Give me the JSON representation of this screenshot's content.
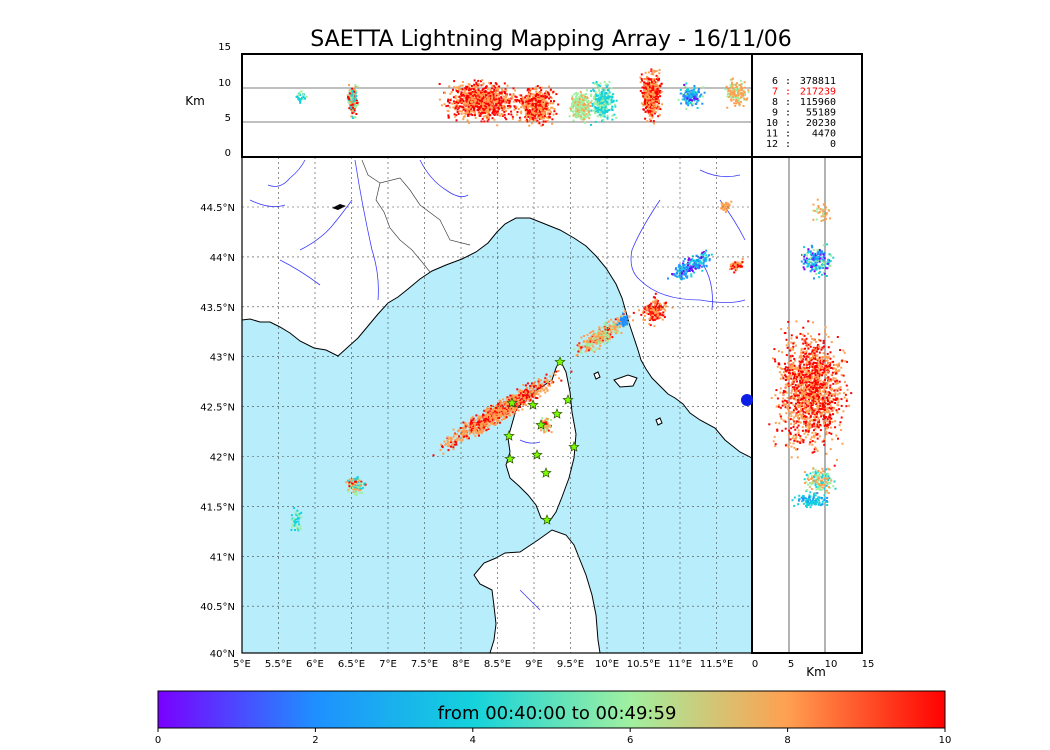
{
  "title": "SAETTA Lightning Mapping Array - 16/11/06",
  "top_panel": {
    "ylabel": "Km",
    "y_ticks": [
      "15",
      "10",
      "5",
      "0"
    ]
  },
  "side_panel": {
    "xlabel": "Km",
    "x_ticks": [
      "0",
      "5",
      "10",
      "15"
    ]
  },
  "map": {
    "lon_ticks": [
      "5°E",
      "5.5°E",
      "6°E",
      "6.5°E",
      "7°E",
      "7.5°E",
      "8°E",
      "8.5°E",
      "9°E",
      "9.5°E",
      "10°E",
      "10.5°E",
      "11°E",
      "11.5°E"
    ],
    "lat_ticks": [
      "44.5°N",
      "44°N",
      "43.5°N",
      "43°N",
      "42.5°N",
      "42°N",
      "41.5°N",
      "41°N",
      "40.5°N",
      "40°N"
    ],
    "sea_color": "#b8eefc",
    "land_color": "#ffffff",
    "station_color": "#7cfc00",
    "station_count": 12
  },
  "altitude_counts": [
    {
      "level": "6",
      "count": "378811",
      "color": "#000000"
    },
    {
      "level": "7",
      "count": "217239",
      "color": "#ff0000"
    },
    {
      "level": "8",
      "count": "115960",
      "color": "#000000"
    },
    {
      "level": "9",
      "count": "55189",
      "color": "#000000"
    },
    {
      "level": "10",
      "count": "20230",
      "color": "#000000"
    },
    {
      "level": "11",
      "count": "4470",
      "color": "#000000"
    },
    {
      "level": "12",
      "count": "0",
      "color": "#000000"
    }
  ],
  "colorbar": {
    "label": "from 00:40:00 to 00:49:59",
    "ticks": [
      "0",
      "2",
      "4",
      "6",
      "8",
      "10"
    ],
    "stops": [
      "#7a00ff",
      "#1e90ff",
      "#14d2dc",
      "#a0f0a0",
      "#ffa050",
      "#ff0000"
    ]
  }
}
